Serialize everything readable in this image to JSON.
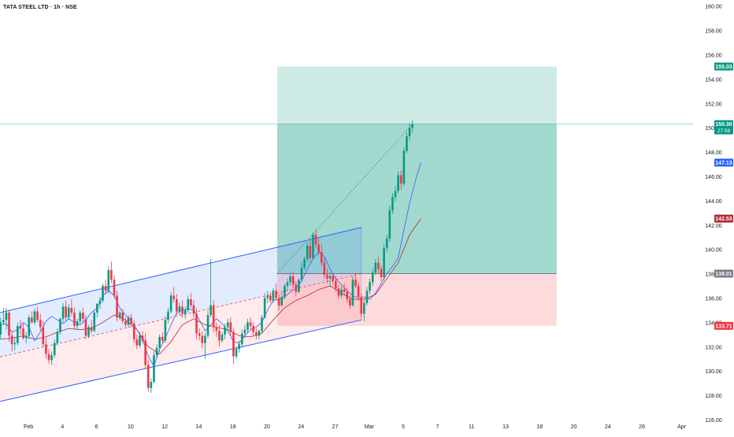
{
  "title": "TATA STEEL LTD · 1h · NSE",
  "chart_data": {
    "type": "candlestick",
    "symbol": "TATA STEEL LTD",
    "interval": "1h",
    "exchange": "NSE",
    "ylim": [
      126,
      160.5
    ],
    "xlim": [
      0,
      61
    ],
    "y_ticks": [
      "126.00",
      "128.00",
      "130.00",
      "132.00",
      "134.00",
      "136.00",
      "138.00",
      "140.00",
      "142.00",
      "144.00",
      "146.00",
      "148.00",
      "150.00",
      "152.00",
      "154.00",
      "156.00",
      "158.00",
      "160.00"
    ],
    "x_ticks": [
      {
        "label": "Feb",
        "x": 2.5
      },
      {
        "label": "4",
        "x": 5.5
      },
      {
        "label": "6",
        "x": 8.5
      },
      {
        "label": "10",
        "x": 11.5
      },
      {
        "label": "12",
        "x": 14.5
      },
      {
        "label": "14",
        "x": 17.5
      },
      {
        "label": "18",
        "x": 20.5
      },
      {
        "label": "20",
        "x": 23.5
      },
      {
        "label": "24",
        "x": 26.5
      },
      {
        "label": "27",
        "x": 29.5
      },
      {
        "label": "Mar",
        "x": 32.5
      },
      {
        "label": "5",
        "x": 35.5
      },
      {
        "label": "7",
        "x": 38.5
      },
      {
        "label": "11",
        "x": 41.5
      },
      {
        "label": "13",
        "x": 44.5
      },
      {
        "label": "18",
        "x": 47.5
      },
      {
        "label": "20",
        "x": 50.5
      },
      {
        "label": "24",
        "x": 53.5
      },
      {
        "label": "26",
        "x": 56.5
      },
      {
        "label": "Apr",
        "x": 60.0
      }
    ],
    "price_labels": [
      {
        "text": "155.03",
        "value": 155.03,
        "color": "#089981"
      },
      {
        "text": "150.30",
        "value": 150.3,
        "color": "#089981",
        "sub": "27:58"
      },
      {
        "text": "147.13",
        "value": 147.13,
        "color": "#2962ff"
      },
      {
        "text": "142.53",
        "value": 142.53,
        "color": "#b22833"
      },
      {
        "text": "138.01",
        "value": 138.01,
        "color": "#787b86"
      },
      {
        "text": "133.71",
        "value": 133.71,
        "color": "#f23645"
      }
    ],
    "long_position": {
      "x_start": 24.4,
      "x_end": 49.0,
      "entry": 138.01,
      "target": 155.03,
      "stop": 133.71,
      "current": 150.3
    },
    "channel": {
      "upper": [
        [
          0,
          134.8
        ],
        [
          31.8,
          141.8
        ]
      ],
      "lower": [
        [
          0,
          127.5
        ],
        [
          31.8,
          134.2
        ]
      ],
      "mid": [
        [
          0,
          131.15
        ],
        [
          31.8,
          138.0
        ]
      ],
      "x_end_fill": 31.8
    },
    "candles": [
      [
        133.0,
        134.4,
        132.6,
        134.0
      ],
      [
        134.0,
        135.2,
        133.8,
        134.2
      ],
      [
        134.2,
        135.2,
        133.4,
        134.8
      ],
      [
        134.8,
        135.0,
        132.4,
        132.9
      ],
      [
        132.9,
        133.3,
        131.6,
        132.2
      ],
      [
        132.2,
        132.8,
        131.7,
        132.3
      ],
      [
        132.3,
        134.0,
        132.1,
        133.7
      ],
      [
        133.7,
        134.2,
        133.0,
        133.5
      ],
      [
        133.5,
        133.9,
        132.6,
        132.7
      ],
      [
        132.7,
        133.2,
        132.3,
        132.9
      ],
      [
        132.9,
        134.6,
        132.6,
        134.4
      ],
      [
        134.4,
        134.9,
        133.9,
        134.0
      ],
      [
        134.0,
        135.1,
        133.8,
        134.9
      ],
      [
        134.9,
        135.3,
        134.0,
        134.2
      ],
      [
        134.2,
        134.7,
        133.3,
        133.6
      ],
      [
        133.6,
        134.1,
        132.0,
        132.2
      ],
      [
        132.2,
        132.7,
        131.0,
        131.4
      ],
      [
        131.4,
        131.8,
        130.6,
        130.9
      ],
      [
        130.9,
        131.6,
        130.5,
        131.3
      ],
      [
        131.3,
        132.6,
        131.1,
        132.3
      ],
      [
        132.3,
        133.5,
        132.1,
        133.2
      ],
      [
        133.2,
        134.4,
        133.0,
        134.3
      ],
      [
        134.3,
        135.6,
        134.0,
        135.3
      ],
      [
        135.3,
        135.8,
        134.1,
        134.4
      ],
      [
        134.4,
        135.5,
        134.2,
        135.2
      ],
      [
        135.2,
        135.9,
        134.5,
        134.8
      ],
      [
        134.8,
        135.2,
        133.4,
        133.7
      ],
      [
        133.7,
        134.3,
        133.4,
        134.1
      ],
      [
        134.1,
        135.0,
        133.9,
        134.8
      ],
      [
        134.8,
        135.2,
        134.0,
        134.3
      ],
      [
        134.3,
        134.6,
        132.6,
        132.9
      ],
      [
        132.9,
        133.8,
        132.7,
        133.6
      ],
      [
        133.6,
        134.2,
        133.1,
        133.3
      ],
      [
        133.3,
        135.0,
        133.2,
        134.8
      ],
      [
        134.8,
        135.6,
        134.4,
        135.5
      ],
      [
        135.5,
        136.1,
        135.1,
        135.8
      ],
      [
        135.8,
        137.2,
        135.6,
        137.0
      ],
      [
        137.0,
        137.5,
        136.3,
        136.6
      ],
      [
        136.6,
        138.6,
        136.4,
        138.3
      ],
      [
        138.3,
        139.0,
        137.2,
        137.5
      ],
      [
        137.5,
        137.9,
        136.0,
        136.2
      ],
      [
        136.2,
        136.6,
        134.1,
        134.4
      ],
      [
        134.4,
        135.0,
        134.2,
        134.8
      ],
      [
        134.8,
        135.1,
        133.9,
        134.1
      ],
      [
        134.1,
        134.4,
        133.6,
        133.8
      ],
      [
        133.8,
        134.6,
        133.6,
        134.4
      ],
      [
        134.4,
        134.7,
        133.7,
        133.9
      ],
      [
        133.9,
        134.2,
        132.3,
        132.6
      ],
      [
        132.6,
        133.0,
        131.8,
        132.1
      ],
      [
        132.1,
        133.2,
        131.9,
        132.9
      ],
      [
        132.9,
        133.3,
        132.3,
        132.5
      ],
      [
        132.5,
        133.1,
        130.2,
        130.5
      ],
      [
        130.5,
        130.9,
        128.3,
        128.6
      ],
      [
        128.6,
        129.4,
        128.2,
        129.1
      ],
      [
        129.1,
        131.6,
        129.0,
        131.3
      ],
      [
        131.3,
        132.2,
        131.0,
        131.9
      ],
      [
        131.9,
        133.0,
        131.6,
        132.8
      ],
      [
        132.8,
        133.2,
        132.2,
        132.5
      ],
      [
        132.5,
        134.5,
        132.3,
        134.2
      ],
      [
        134.2,
        135.2,
        133.9,
        134.9
      ],
      [
        134.9,
        136.5,
        134.7,
        136.2
      ],
      [
        136.2,
        136.9,
        135.6,
        135.9
      ],
      [
        135.9,
        136.3,
        134.6,
        134.9
      ],
      [
        134.9,
        135.6,
        134.6,
        135.3
      ],
      [
        135.3,
        135.8,
        134.4,
        134.7
      ],
      [
        134.7,
        135.3,
        134.3,
        135.0
      ],
      [
        135.0,
        136.2,
        134.8,
        135.9
      ],
      [
        135.9,
        136.4,
        135.2,
        135.4
      ],
      [
        135.4,
        135.8,
        134.4,
        134.7
      ],
      [
        134.7,
        135.2,
        132.6,
        133.1
      ],
      [
        133.1,
        133.5,
        132.5,
        132.9
      ],
      [
        132.9,
        133.3,
        131.9,
        132.3
      ],
      [
        132.3,
        133.2,
        131.0,
        132.9
      ],
      [
        132.9,
        135.0,
        132.7,
        134.6
      ],
      [
        134.6,
        139.2,
        134.4,
        135.4
      ],
      [
        135.4,
        135.8,
        133.2,
        133.6
      ],
      [
        133.6,
        134.0,
        132.8,
        133.3
      ],
      [
        133.3,
        133.8,
        132.0,
        132.5
      ],
      [
        132.5,
        133.2,
        132.3,
        133.0
      ],
      [
        133.0,
        133.9,
        132.6,
        133.6
      ],
      [
        133.6,
        134.3,
        133.2,
        134.0
      ],
      [
        134.0,
        134.4,
        132.9,
        133.2
      ],
      [
        133.2,
        133.5,
        130.6,
        131.2
      ],
      [
        131.2,
        132.0,
        131.0,
        131.8
      ],
      [
        131.8,
        132.5,
        131.5,
        132.2
      ],
      [
        132.2,
        133.4,
        132.0,
        133.1
      ],
      [
        133.1,
        133.8,
        132.7,
        133.4
      ],
      [
        133.4,
        134.3,
        133.1,
        134.0
      ],
      [
        134.0,
        134.4,
        133.4,
        133.7
      ],
      [
        133.7,
        134.0,
        132.9,
        133.2
      ],
      [
        133.2,
        133.5,
        132.6,
        132.9
      ],
      [
        132.9,
        133.4,
        132.6,
        133.3
      ],
      [
        133.3,
        134.6,
        133.1,
        134.4
      ],
      [
        134.4,
        136.4,
        134.3,
        136.0
      ],
      [
        136.0,
        136.6,
        135.6,
        136.2
      ],
      [
        136.2,
        136.5,
        135.6,
        135.8
      ],
      [
        135.8,
        136.8,
        135.6,
        136.6
      ],
      [
        136.6,
        137.2,
        135.8,
        136.0
      ],
      [
        136.0,
        136.3,
        135.0,
        135.4
      ],
      [
        135.4,
        136.4,
        135.3,
        136.1
      ],
      [
        136.1,
        137.2,
        135.9,
        137.0
      ],
      [
        137.0,
        137.6,
        136.6,
        137.3
      ],
      [
        137.3,
        138.0,
        137.0,
        137.8
      ],
      [
        137.8,
        138.2,
        136.8,
        137.1
      ],
      [
        137.1,
        137.4,
        136.2,
        136.5
      ],
      [
        136.5,
        137.6,
        136.4,
        137.5
      ],
      [
        137.5,
        138.9,
        137.3,
        138.5
      ],
      [
        138.5,
        139.4,
        138.3,
        139.2
      ],
      [
        139.2,
        140.6,
        138.9,
        140.3
      ],
      [
        140.3,
        140.8,
        139.0,
        139.3
      ],
      [
        139.3,
        141.4,
        139.2,
        141.2
      ],
      [
        141.2,
        141.7,
        140.1,
        140.4
      ],
      [
        140.4,
        140.9,
        139.5,
        139.8
      ],
      [
        139.8,
        140.4,
        138.6,
        138.9
      ],
      [
        138.9,
        139.3,
        137.6,
        137.9
      ],
      [
        137.9,
        138.4,
        137.2,
        137.6
      ],
      [
        137.6,
        138.1,
        136.9,
        137.8
      ],
      [
        137.8,
        138.0,
        137.1,
        137.4
      ],
      [
        137.4,
        137.8,
        136.5,
        136.8
      ],
      [
        136.8,
        137.1,
        135.9,
        136.2
      ],
      [
        136.2,
        137.0,
        136.0,
        136.7
      ],
      [
        136.7,
        137.2,
        136.2,
        136.5
      ],
      [
        136.5,
        136.8,
        135.6,
        135.9
      ],
      [
        135.9,
        136.2,
        135.1,
        135.4
      ],
      [
        135.4,
        137.8,
        135.3,
        137.5
      ],
      [
        137.5,
        138.0,
        136.8,
        137.0
      ],
      [
        137.0,
        137.3,
        135.8,
        136.1
      ],
      [
        136.1,
        136.4,
        134.4,
        134.7
      ],
      [
        134.7,
        135.9,
        134.1,
        135.6
      ],
      [
        135.6,
        136.9,
        135.4,
        136.6
      ],
      [
        136.6,
        137.6,
        136.3,
        137.3
      ],
      [
        137.3,
        138.4,
        137.0,
        138.1
      ],
      [
        138.1,
        139.2,
        137.9,
        138.9
      ],
      [
        138.9,
        139.4,
        138.0,
        138.4
      ],
      [
        138.4,
        138.7,
        137.4,
        137.7
      ],
      [
        137.7,
        140.4,
        137.5,
        140.1
      ],
      [
        140.1,
        141.2,
        139.8,
        140.9
      ],
      [
        140.9,
        143.6,
        140.6,
        143.2
      ],
      [
        143.2,
        144.6,
        142.9,
        144.3
      ],
      [
        144.3,
        145.2,
        143.9,
        144.8
      ],
      [
        144.8,
        146.4,
        144.6,
        146.1
      ],
      [
        146.1,
        146.5,
        144.9,
        145.4
      ],
      [
        145.4,
        148.4,
        145.2,
        148.1
      ],
      [
        148.1,
        149.6,
        147.9,
        149.3
      ],
      [
        149.3,
        150.4,
        149.0,
        150.0
      ],
      [
        150.0,
        150.6,
        149.6,
        150.3
      ]
    ],
    "line_blue": [
      [
        0,
        133.8
      ],
      [
        2,
        133.9
      ],
      [
        4,
        133.2
      ],
      [
        6,
        133.4
      ],
      [
        8,
        134.0
      ],
      [
        10,
        133.6
      ],
      [
        12,
        132.5
      ],
      [
        14,
        133.2
      ],
      [
        16,
        134.1
      ],
      [
        18,
        134.5
      ],
      [
        20,
        134.2
      ],
      [
        22,
        133.9
      ],
      [
        24,
        134.3
      ],
      [
        26,
        134.0
      ],
      [
        28,
        133.8
      ],
      [
        30,
        134.2
      ],
      [
        32,
        134.8
      ],
      [
        34,
        135.2
      ],
      [
        36,
        136.2
      ],
      [
        38,
        136.6
      ],
      [
        40,
        136.2
      ],
      [
        42,
        135.2
      ],
      [
        44,
        134.6
      ],
      [
        46,
        134.1
      ],
      [
        48,
        133.4
      ],
      [
        50,
        132.6
      ],
      [
        52,
        131.2
      ],
      [
        54,
        130.4
      ],
      [
        56,
        131.8
      ],
      [
        58,
        132.7
      ],
      [
        60,
        133.8
      ],
      [
        62,
        134.8
      ],
      [
        64,
        135.0
      ],
      [
        66,
        135.1
      ],
      [
        68,
        135.0
      ],
      [
        70,
        134.2
      ],
      [
        72,
        133.3
      ],
      [
        74,
        133.8
      ],
      [
        76,
        134.3
      ],
      [
        78,
        133.9
      ],
      [
        80,
        133.3
      ],
      [
        82,
        132.4
      ],
      [
        84,
        132.3
      ],
      [
        86,
        132.9
      ],
      [
        88,
        133.4
      ],
      [
        90,
        133.6
      ],
      [
        92,
        134.0
      ],
      [
        94,
        135.0
      ],
      [
        96,
        135.8
      ],
      [
        98,
        135.9
      ],
      [
        100,
        136.1
      ],
      [
        102,
        136.5
      ],
      [
        104,
        136.8
      ],
      [
        106,
        137.4
      ],
      [
        108,
        138.4
      ],
      [
        110,
        139.2
      ],
      [
        112,
        139.8
      ],
      [
        114,
        139.4
      ],
      [
        116,
        138.4
      ],
      [
        118,
        137.6
      ],
      [
        120,
        137.1
      ],
      [
        122,
        136.6
      ],
      [
        124,
        136.2
      ],
      [
        126,
        136.0
      ],
      [
        128,
        136.1
      ],
      [
        130,
        135.9
      ],
      [
        132,
        136.4
      ],
      [
        134,
        137.2
      ],
      [
        136,
        138.0
      ],
      [
        138,
        138.6
      ],
      [
        140,
        139.3
      ],
      [
        142,
        141.6
      ],
      [
        144,
        143.8
      ],
      [
        146,
        145.6
      ],
      [
        148,
        147.13
      ]
    ],
    "line_red": [
      [
        0,
        132.6
      ],
      [
        4,
        132.7
      ],
      [
        8,
        132.9
      ],
      [
        12,
        132.6
      ],
      [
        16,
        132.8
      ],
      [
        20,
        133.2
      ],
      [
        24,
        133.5
      ],
      [
        28,
        133.4
      ],
      [
        32,
        133.5
      ],
      [
        36,
        134.0
      ],
      [
        40,
        134.6
      ],
      [
        44,
        134.2
      ],
      [
        48,
        133.4
      ],
      [
        52,
        132.0
      ],
      [
        56,
        131.4
      ],
      [
        60,
        132.4
      ],
      [
        64,
        133.8
      ],
      [
        68,
        134.3
      ],
      [
        72,
        133.8
      ],
      [
        76,
        133.6
      ],
      [
        80,
        133.4
      ],
      [
        84,
        132.9
      ],
      [
        88,
        132.8
      ],
      [
        92,
        133.1
      ],
      [
        96,
        134.2
      ],
      [
        100,
        135.2
      ],
      [
        104,
        135.8
      ],
      [
        108,
        136.2
      ],
      [
        112,
        136.7
      ],
      [
        116,
        137.0
      ],
      [
        120,
        136.4
      ],
      [
        124,
        135.9
      ],
      [
        128,
        135.9
      ],
      [
        132,
        136.3
      ],
      [
        136,
        137.6
      ],
      [
        140,
        138.9
      ],
      [
        144,
        141.2
      ],
      [
        148,
        142.53
      ]
    ]
  }
}
